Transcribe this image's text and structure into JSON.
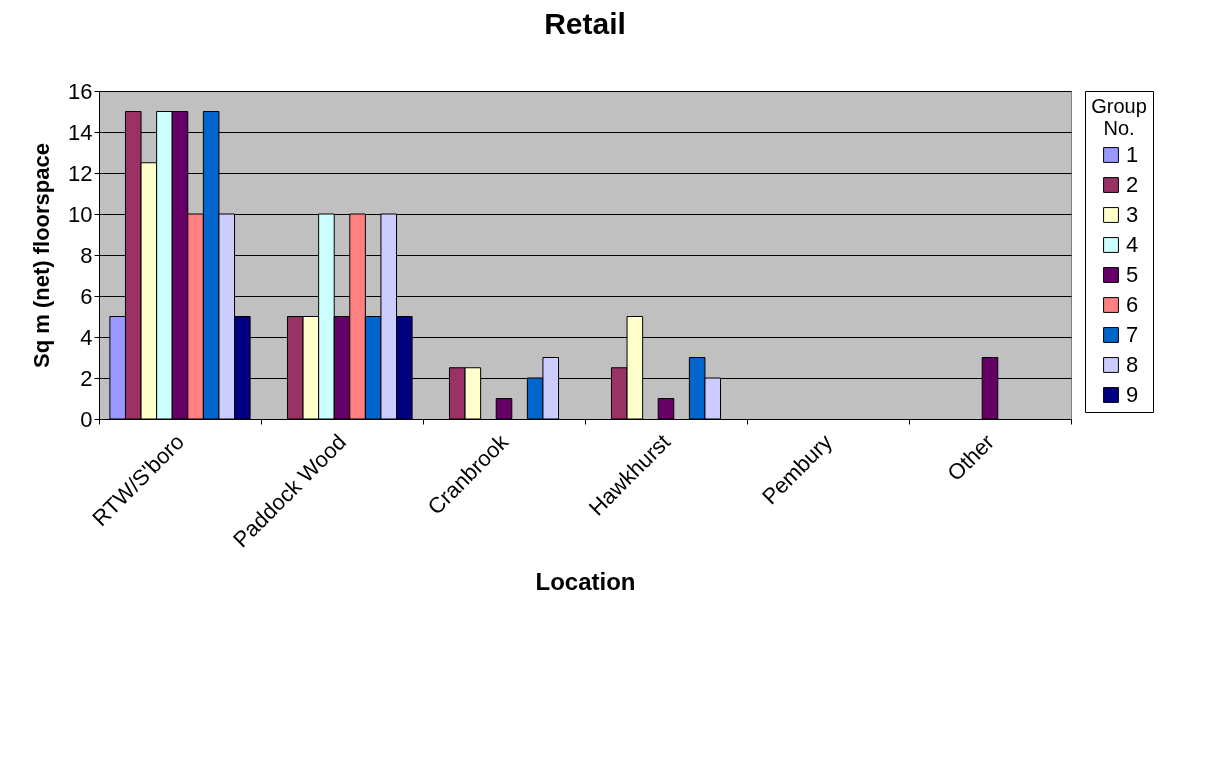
{
  "chart_data": {
    "type": "bar",
    "title": "Retail",
    "xlabel": "Location",
    "ylabel": "Sq m (net) floorspace",
    "legend_title": "Group No.",
    "categories": [
      "RTW/S'boro",
      "Paddock Wood",
      "Cranbrook",
      "Hawkhurst",
      "Pembury",
      "Other"
    ],
    "series": [
      {
        "name": "1",
        "color": "#9999ff",
        "values": [
          5,
          null,
          null,
          null,
          null,
          null
        ]
      },
      {
        "name": "2",
        "color": "#993366",
        "values": [
          15,
          5,
          2.5,
          2.5,
          null,
          null
        ]
      },
      {
        "name": "3",
        "color": "#ffffcc",
        "values": [
          12.5,
          5,
          2.5,
          5,
          null,
          null
        ]
      },
      {
        "name": "4",
        "color": "#ccffff",
        "values": [
          15,
          10,
          null,
          null,
          null,
          null
        ]
      },
      {
        "name": "5",
        "color": "#660066",
        "values": [
          15,
          5,
          1,
          1,
          null,
          3
        ]
      },
      {
        "name": "6",
        "color": "#ff8080",
        "values": [
          10,
          10,
          null,
          null,
          null,
          null
        ]
      },
      {
        "name": "7",
        "color": "#0066cc",
        "values": [
          15,
          5,
          2,
          3,
          null,
          null
        ]
      },
      {
        "name": "8",
        "color": "#ccccff",
        "values": [
          10,
          10,
          3,
          2,
          null,
          null
        ]
      },
      {
        "name": "9",
        "color": "#000080",
        "values": [
          5,
          5,
          null,
          null,
          null,
          null
        ]
      }
    ],
    "ylim": [
      0,
      16
    ],
    "yticks": [
      0,
      2,
      4,
      6,
      8,
      10,
      12,
      14,
      16
    ],
    "grid": "y",
    "legend": "right"
  }
}
